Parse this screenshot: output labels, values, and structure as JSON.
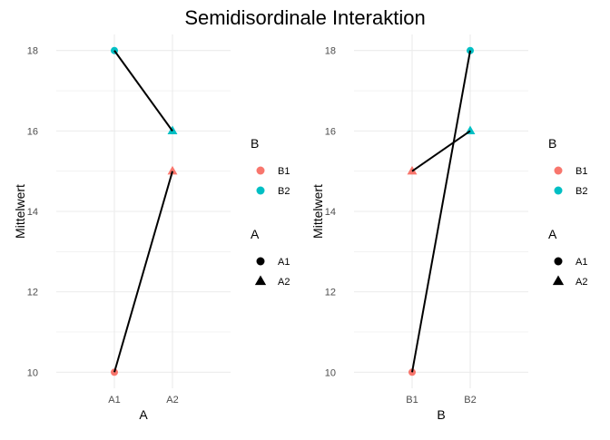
{
  "title": "Semidisordinale Interaktion",
  "colors": {
    "B1": "#F8766D",
    "B2": "#00BFC4",
    "line": "#000000",
    "grid": "#EBEBEB"
  },
  "chart_data": [
    {
      "type": "line",
      "xlabel": "A",
      "ylabel": "Mittelwert",
      "categories": [
        "A1",
        "A2"
      ],
      "ylim": [
        9.6,
        18.4
      ],
      "yticks": [
        10,
        12,
        14,
        16,
        18
      ],
      "grid": true,
      "points": [
        {
          "x": "A1",
          "y": 18,
          "B": "B2",
          "A": "A1"
        },
        {
          "x": "A2",
          "y": 16,
          "B": "B2",
          "A": "A2"
        },
        {
          "x": "A1",
          "y": 10,
          "B": "B1",
          "A": "A1"
        },
        {
          "x": "A2",
          "y": 15,
          "B": "B1",
          "A": "A2"
        }
      ],
      "lines": [
        {
          "from": [
            "A1",
            18
          ],
          "to": [
            "A2",
            16
          ]
        },
        {
          "from": [
            "A1",
            10
          ],
          "to": [
            "A2",
            15
          ]
        }
      ],
      "legends": [
        {
          "title": "B",
          "entries": [
            {
              "label": "B1",
              "shape": "circle",
              "color": "#F8766D"
            },
            {
              "label": "B2",
              "shape": "circle",
              "color": "#00BFC4"
            }
          ]
        },
        {
          "title": "A",
          "entries": [
            {
              "label": "A1",
              "shape": "circle",
              "color": "#000000"
            },
            {
              "label": "A2",
              "shape": "triangle",
              "color": "#000000"
            }
          ]
        }
      ],
      "legend_position": "right"
    },
    {
      "type": "line",
      "xlabel": "B",
      "ylabel": "Mittelwert",
      "categories": [
        "B1",
        "B2"
      ],
      "ylim": [
        9.6,
        18.4
      ],
      "yticks": [
        10,
        12,
        14,
        16,
        18
      ],
      "grid": true,
      "points": [
        {
          "x": "B1",
          "y": 15,
          "B": "B1",
          "A": "A2"
        },
        {
          "x": "B2",
          "y": 16,
          "B": "B2",
          "A": "A2"
        },
        {
          "x": "B1",
          "y": 10,
          "B": "B1",
          "A": "A1"
        },
        {
          "x": "B2",
          "y": 18,
          "B": "B2",
          "A": "A1"
        }
      ],
      "lines": [
        {
          "from": [
            "B1",
            15
          ],
          "to": [
            "B2",
            16
          ]
        },
        {
          "from": [
            "B1",
            10
          ],
          "to": [
            "B2",
            18
          ]
        }
      ],
      "legends": [
        {
          "title": "B",
          "entries": [
            {
              "label": "B1",
              "shape": "circle",
              "color": "#F8766D"
            },
            {
              "label": "B2",
              "shape": "circle",
              "color": "#00BFC4"
            }
          ]
        },
        {
          "title": "A",
          "entries": [
            {
              "label": "A1",
              "shape": "circle",
              "color": "#000000"
            },
            {
              "label": "A2",
              "shape": "triangle",
              "color": "#000000"
            }
          ]
        }
      ],
      "legend_position": "right"
    }
  ]
}
